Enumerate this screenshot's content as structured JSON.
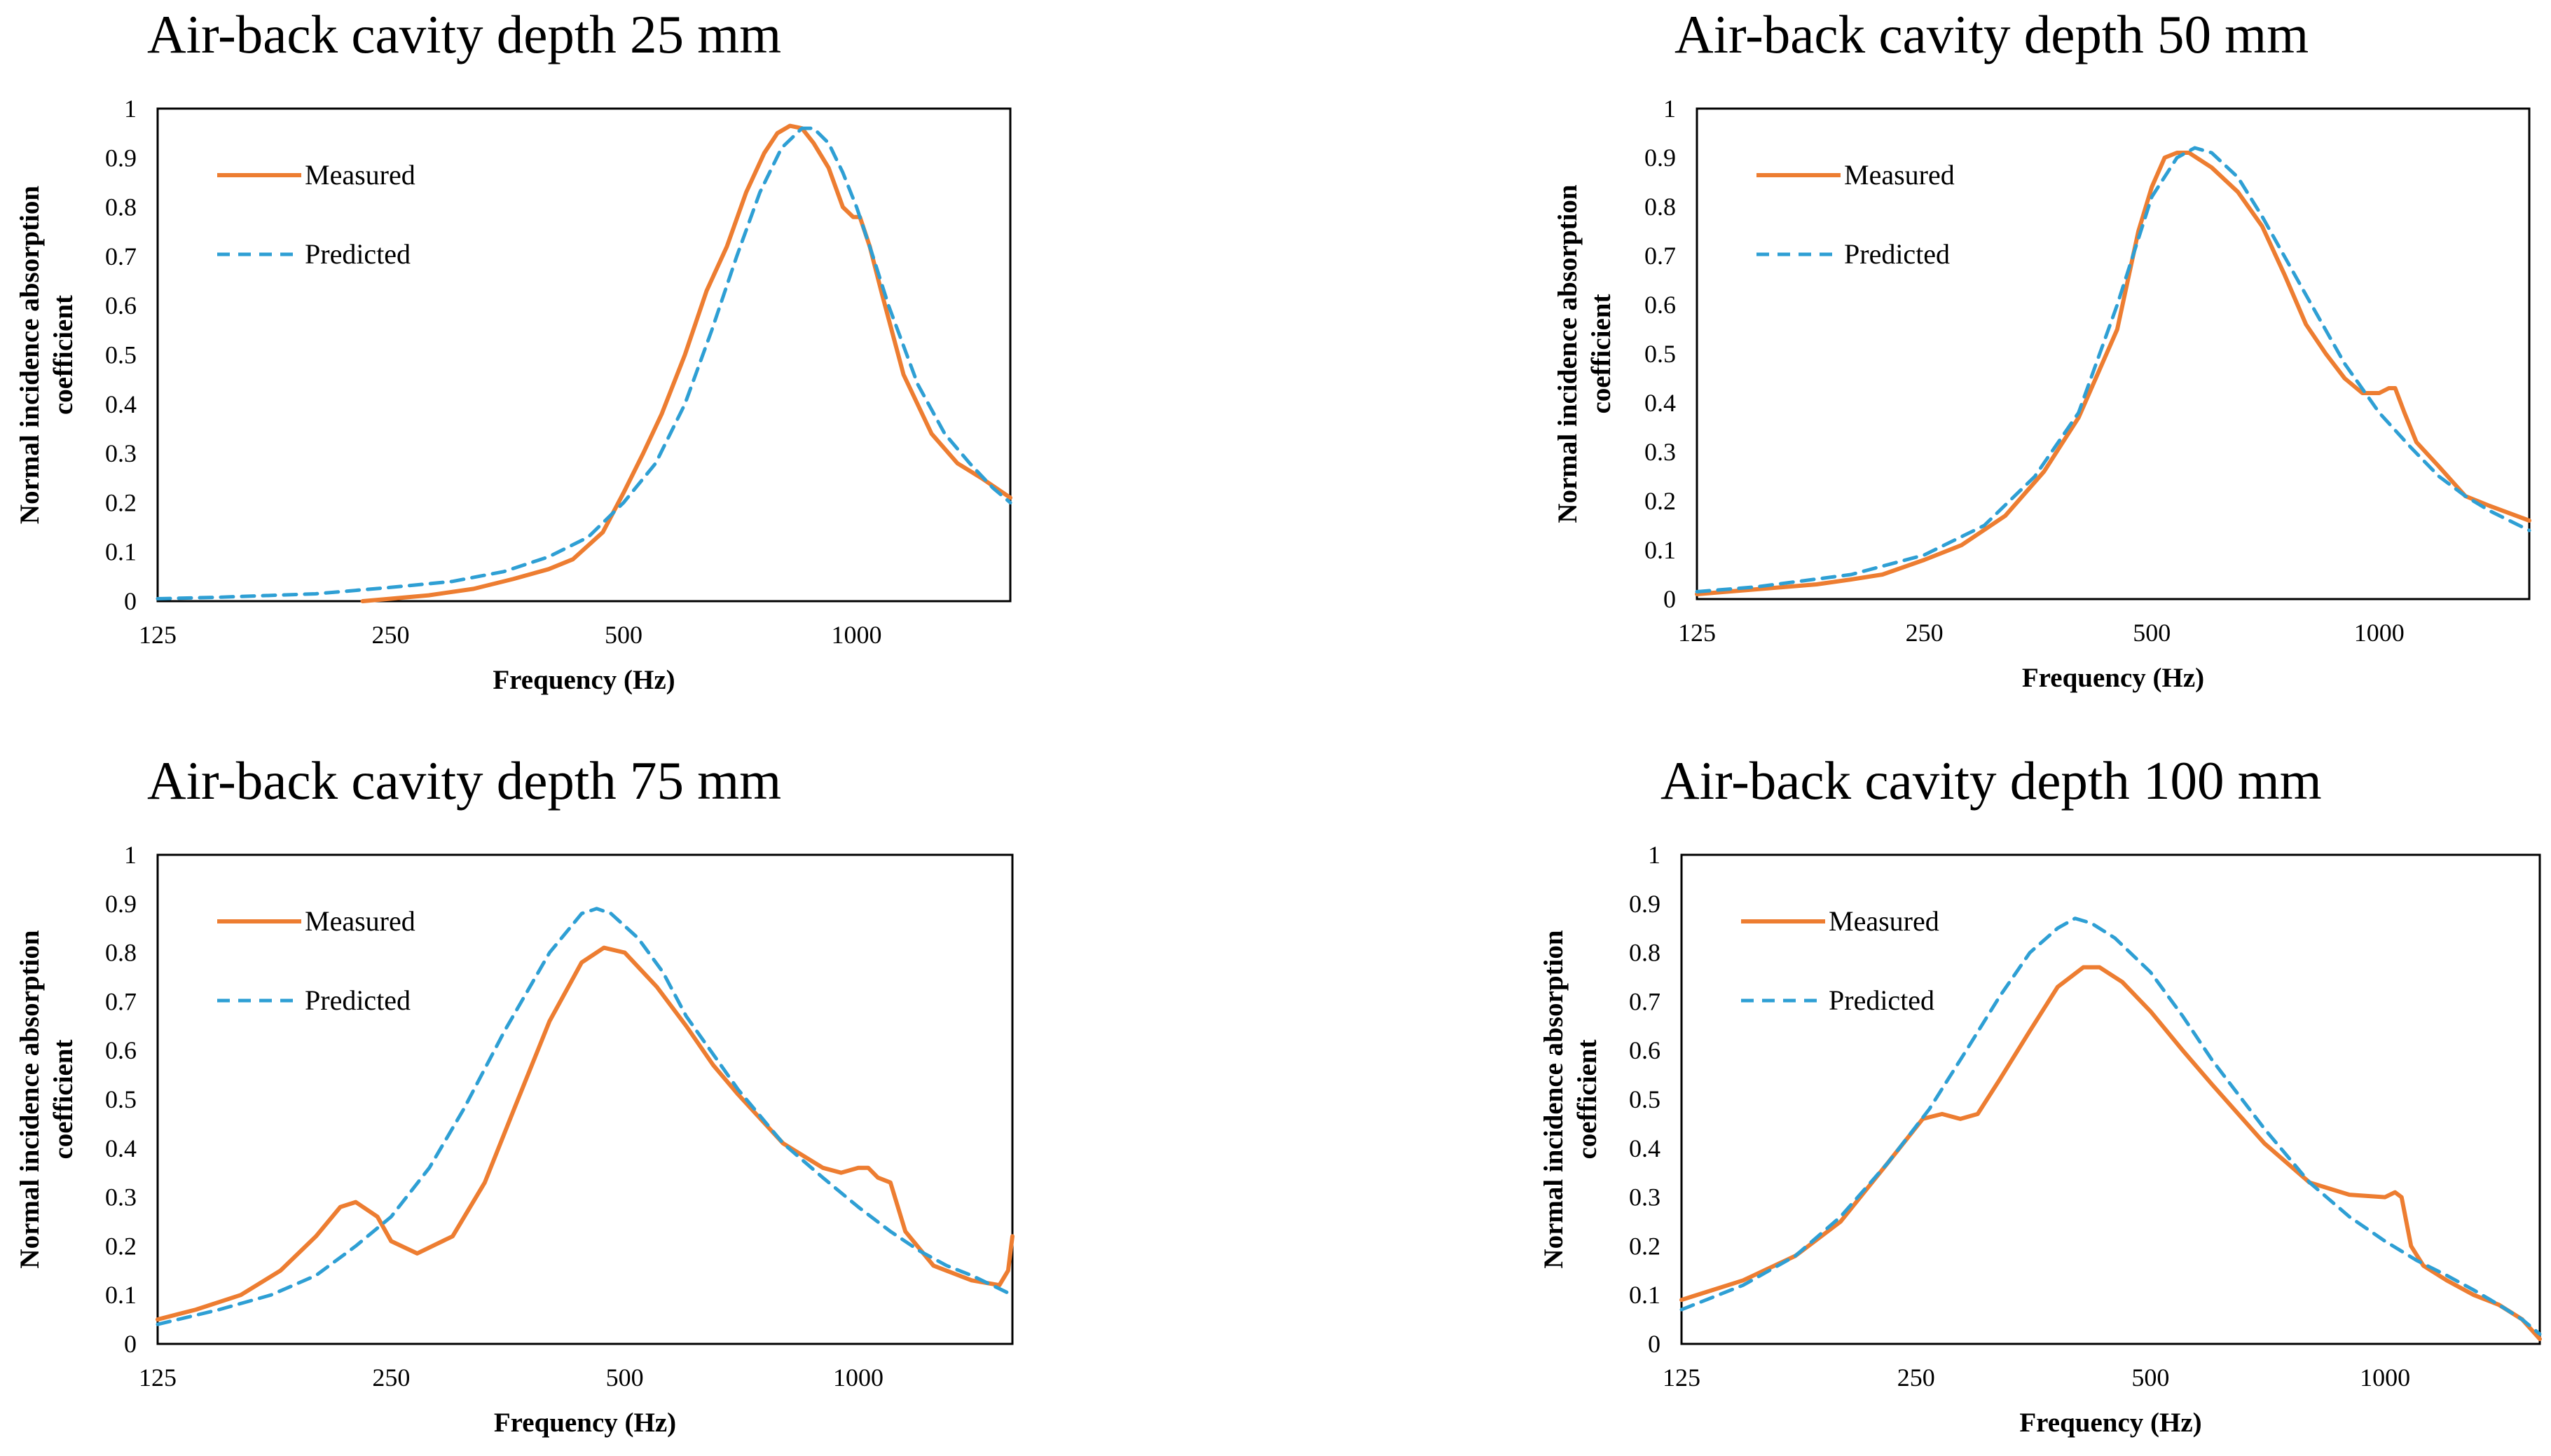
{
  "colors": {
    "measured": "#ED7D31",
    "predicted": "#2E9FD4",
    "axis": "#000000"
  },
  "chart_data": [
    {
      "type": "line",
      "title": "Air-back cavity depth 25 mm",
      "xlabel": "Frequency (Hz)",
      "ylabel": [
        "Normal incidence absorption",
        "coefficient"
      ],
      "xscale": "log",
      "xlim": [
        125,
        1580
      ],
      "ylim": [
        0,
        1
      ],
      "xticks": [
        125,
        250,
        500,
        1000
      ],
      "xtick_labels": [
        "125",
        "250",
        "500",
        "1000"
      ],
      "yticks": [
        0,
        0.1,
        0.2,
        0.3,
        0.4,
        0.5,
        0.6,
        0.7,
        0.8,
        0.9,
        1
      ],
      "ytick_labels": [
        "0",
        "0.1",
        "0.2",
        "0.3",
        "0.4",
        "0.5",
        "0.6",
        "0.7",
        "0.8",
        "0.9",
        "1"
      ],
      "legend_position": "top-left",
      "series": [
        {
          "name": "Measured",
          "style": "solid",
          "x": [
            230,
            250,
            280,
            320,
            360,
            400,
            430,
            470,
            500,
            530,
            560,
            600,
            640,
            680,
            720,
            760,
            790,
            820,
            850,
            880,
            920,
            960,
            990,
            1010,
            1040,
            1080,
            1150,
            1250,
            1350,
            1450,
            1580
          ],
          "y": [
            0,
            0.005,
            0.012,
            0.025,
            0.045,
            0.065,
            0.085,
            0.14,
            0.22,
            0.3,
            0.38,
            0.5,
            0.63,
            0.72,
            0.83,
            0.91,
            0.95,
            0.965,
            0.96,
            0.93,
            0.88,
            0.8,
            0.78,
            0.78,
            0.72,
            0.62,
            0.46,
            0.34,
            0.28,
            0.25,
            0.21
          ]
        },
        {
          "name": "Predicted",
          "style": "dashed",
          "x": [
            125,
            150,
            200,
            250,
            300,
            350,
            400,
            450,
            500,
            550,
            600,
            650,
            700,
            750,
            800,
            850,
            880,
            920,
            960,
            1000,
            1050,
            1100,
            1200,
            1300,
            1400,
            1500,
            1580
          ],
          "y": [
            0.005,
            0.008,
            0.015,
            0.028,
            0.04,
            0.06,
            0.09,
            0.13,
            0.2,
            0.28,
            0.4,
            0.55,
            0.7,
            0.83,
            0.92,
            0.96,
            0.96,
            0.93,
            0.87,
            0.8,
            0.7,
            0.6,
            0.44,
            0.34,
            0.28,
            0.23,
            0.2
          ]
        }
      ]
    },
    {
      "type": "line",
      "title": "Air-back cavity depth 50 mm",
      "xlabel": "Frequency (Hz)",
      "ylabel": [
        "Normal incidence absorption",
        "coefficient"
      ],
      "xscale": "log",
      "xlim": [
        125,
        1580
      ],
      "ylim": [
        0,
        1
      ],
      "xticks": [
        125,
        250,
        500,
        1000
      ],
      "xtick_labels": [
        "125",
        "250",
        "500",
        "1000"
      ],
      "yticks": [
        0,
        0.1,
        0.2,
        0.3,
        0.4,
        0.5,
        0.6,
        0.7,
        0.8,
        0.9,
        1
      ],
      "ytick_labels": [
        "0",
        "0.1",
        "0.2",
        "0.3",
        "0.4",
        "0.5",
        "0.6",
        "0.7",
        "0.8",
        "0.9",
        "1"
      ],
      "legend_position": "top-left",
      "series": [
        {
          "name": "Measured",
          "style": "solid",
          "x": [
            125,
            150,
            180,
            200,
            220,
            250,
            280,
            320,
            360,
            400,
            450,
            480,
            500,
            520,
            540,
            560,
            600,
            650,
            700,
            750,
            800,
            850,
            900,
            950,
            1000,
            1030,
            1050,
            1080,
            1120,
            1200,
            1300,
            1400,
            1580
          ],
          "y": [
            0.01,
            0.02,
            0.03,
            0.04,
            0.05,
            0.08,
            0.11,
            0.17,
            0.26,
            0.37,
            0.55,
            0.75,
            0.84,
            0.9,
            0.91,
            0.91,
            0.88,
            0.83,
            0.76,
            0.66,
            0.56,
            0.5,
            0.45,
            0.42,
            0.42,
            0.43,
            0.43,
            0.38,
            0.32,
            0.27,
            0.21,
            0.19,
            0.16
          ]
        },
        {
          "name": "Predicted",
          "style": "dashed",
          "x": [
            125,
            150,
            200,
            250,
            300,
            350,
            400,
            450,
            500,
            540,
            570,
            600,
            650,
            700,
            800,
            900,
            1000,
            1100,
            1200,
            1300,
            1400,
            1580
          ],
          "y": [
            0.015,
            0.025,
            0.05,
            0.09,
            0.15,
            0.25,
            0.38,
            0.6,
            0.82,
            0.9,
            0.92,
            0.91,
            0.86,
            0.78,
            0.62,
            0.48,
            0.38,
            0.31,
            0.25,
            0.21,
            0.18,
            0.14
          ]
        }
      ]
    },
    {
      "type": "line",
      "title": "Air-back cavity depth 75 mm",
      "xlabel": "Frequency (Hz)",
      "ylabel": [
        "Normal incidence absorption",
        "coefficient"
      ],
      "xscale": "log",
      "xlim": [
        125,
        1580
      ],
      "ylim": [
        0,
        1
      ],
      "xticks": [
        125,
        250,
        500,
        1000
      ],
      "xtick_labels": [
        "125",
        "250",
        "500",
        "1000"
      ],
      "yticks": [
        0,
        0.1,
        0.2,
        0.3,
        0.4,
        0.5,
        0.6,
        0.7,
        0.8,
        0.9,
        1
      ],
      "ytick_labels": [
        "0",
        "0.1",
        "0.2",
        "0.3",
        "0.4",
        "0.5",
        "0.6",
        "0.7",
        "0.8",
        "0.9",
        "1"
      ],
      "legend_position": "top-left",
      "series": [
        {
          "name": "Measured",
          "style": "solid",
          "x": [
            125,
            140,
            160,
            180,
            200,
            215,
            225,
            240,
            250,
            270,
            300,
            330,
            360,
            400,
            440,
            470,
            500,
            550,
            600,
            650,
            700,
            800,
            900,
            950,
            1000,
            1030,
            1060,
            1100,
            1150,
            1250,
            1400,
            1520,
            1560,
            1580
          ],
          "y": [
            0.05,
            0.07,
            0.1,
            0.15,
            0.22,
            0.28,
            0.29,
            0.26,
            0.21,
            0.185,
            0.22,
            0.33,
            0.48,
            0.66,
            0.78,
            0.81,
            0.8,
            0.73,
            0.65,
            0.57,
            0.51,
            0.41,
            0.36,
            0.35,
            0.36,
            0.36,
            0.34,
            0.33,
            0.23,
            0.16,
            0.13,
            0.12,
            0.15,
            0.22
          ]
        },
        {
          "name": "Predicted",
          "style": "dashed",
          "x": [
            125,
            150,
            175,
            200,
            225,
            250,
            280,
            310,
            350,
            400,
            440,
            460,
            480,
            520,
            560,
            600,
            700,
            800,
            900,
            1000,
            1100,
            1200,
            1300,
            1400,
            1580
          ],
          "y": [
            0.04,
            0.07,
            0.1,
            0.14,
            0.2,
            0.26,
            0.36,
            0.48,
            0.64,
            0.8,
            0.88,
            0.89,
            0.88,
            0.83,
            0.76,
            0.67,
            0.52,
            0.41,
            0.34,
            0.28,
            0.23,
            0.19,
            0.16,
            0.14,
            0.1
          ]
        }
      ]
    },
    {
      "type": "line",
      "title": "Air-back cavity depth 100 mm",
      "xlabel": "Frequency (Hz)",
      "ylabel": [
        "Normal incidence absorption",
        "coefficient"
      ],
      "xscale": "log",
      "xlim": [
        125,
        1580
      ],
      "ylim": [
        0,
        1
      ],
      "xticks": [
        125,
        250,
        500,
        1000
      ],
      "xtick_labels": [
        "125",
        "250",
        "500",
        "1000"
      ],
      "yticks": [
        0,
        0.1,
        0.2,
        0.3,
        0.4,
        0.5,
        0.6,
        0.7,
        0.8,
        0.9,
        1
      ],
      "ytick_labels": [
        "0",
        "0.1",
        "0.2",
        "0.3",
        "0.4",
        "0.5",
        "0.6",
        "0.7",
        "0.8",
        "0.9",
        "1"
      ],
      "legend_position": "top-left",
      "series": [
        {
          "name": "Measured",
          "style": "solid",
          "x": [
            125,
            150,
            175,
            200,
            230,
            255,
            270,
            285,
            300,
            320,
            350,
            380,
            410,
            430,
            460,
            500,
            550,
            600,
            700,
            800,
            900,
            1000,
            1030,
            1050,
            1080,
            1120,
            1200,
            1300,
            1400,
            1500,
            1580
          ],
          "y": [
            0.09,
            0.13,
            0.18,
            0.25,
            0.37,
            0.46,
            0.47,
            0.46,
            0.47,
            0.54,
            0.64,
            0.73,
            0.77,
            0.77,
            0.74,
            0.68,
            0.6,
            0.53,
            0.41,
            0.33,
            0.305,
            0.3,
            0.31,
            0.3,
            0.2,
            0.16,
            0.13,
            0.1,
            0.08,
            0.05,
            0.01
          ]
        },
        {
          "name": "Predicted",
          "style": "dashed",
          "x": [
            125,
            150,
            175,
            200,
            230,
            260,
            290,
            320,
            350,
            380,
            400,
            420,
            450,
            500,
            550,
            600,
            700,
            800,
            900,
            1000,
            1100,
            1200,
            1300,
            1400,
            1500,
            1580
          ],
          "y": [
            0.07,
            0.12,
            0.18,
            0.26,
            0.37,
            0.48,
            0.6,
            0.71,
            0.8,
            0.85,
            0.87,
            0.86,
            0.83,
            0.76,
            0.67,
            0.58,
            0.44,
            0.33,
            0.26,
            0.21,
            0.17,
            0.14,
            0.11,
            0.08,
            0.05,
            0.02
          ]
        }
      ]
    }
  ]
}
